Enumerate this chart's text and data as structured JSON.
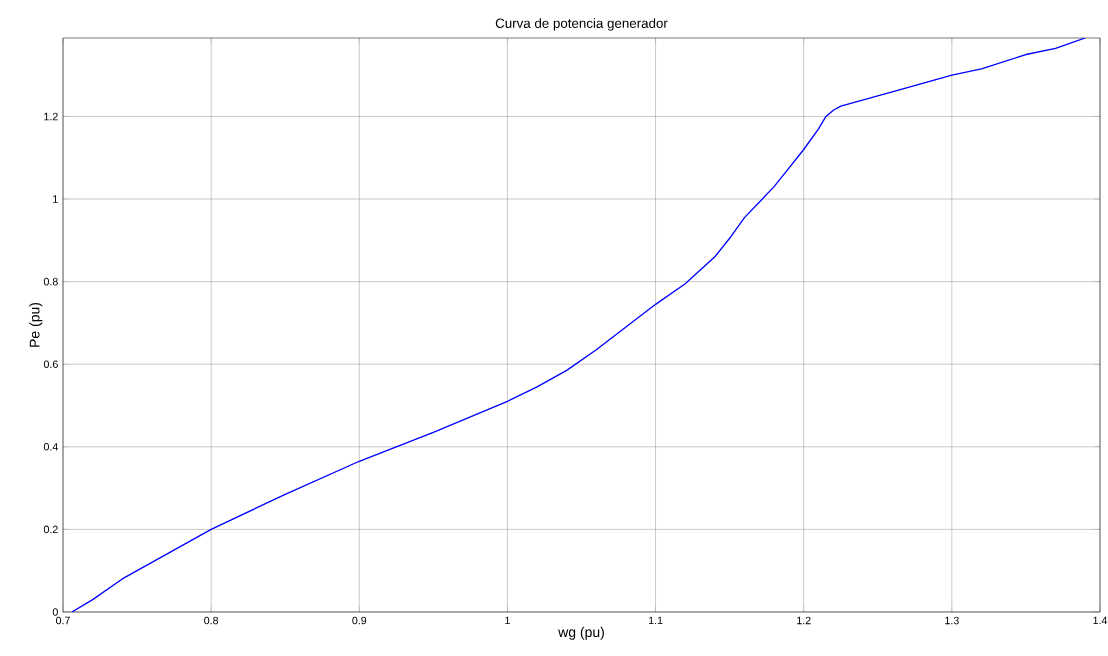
{
  "chart_data": {
    "type": "line",
    "title": "Curva de potencia generador",
    "xlabel": "wg (pu)",
    "ylabel": "Pe (pu)",
    "x": [
      0.706,
      0.72,
      0.74,
      0.76,
      0.78,
      0.8,
      0.85,
      0.9,
      0.95,
      1.0,
      1.02,
      1.04,
      1.05,
      1.06,
      1.08,
      1.1,
      1.12,
      1.14,
      1.15,
      1.16,
      1.18,
      1.19,
      1.2,
      1.21,
      1.215,
      1.22,
      1.225,
      1.24,
      1.25,
      1.27,
      1.3,
      1.32,
      1.35,
      1.37,
      1.39
    ],
    "series": [
      {
        "color": "#0000ff",
        "values": [
          0,
          0.03,
          0.08,
          0.12,
          0.16,
          0.2,
          0.285,
          0.365,
          0.435,
          0.51,
          0.545,
          0.585,
          0.61,
          0.635,
          0.69,
          0.745,
          0.795,
          0.86,
          0.905,
          0.955,
          1.03,
          1.075,
          1.12,
          1.17,
          1.2,
          1.215,
          1.225,
          1.24,
          1.25,
          1.27,
          1.3,
          1.315,
          1.35,
          1.365,
          1.39
        ]
      }
    ],
    "xlim": [
      0.7,
      1.4
    ],
    "ylim": [
      0,
      1.39
    ],
    "xticks": [
      0.7,
      0.8,
      0.9,
      1,
      1.1,
      1.2,
      1.3,
      1.4
    ],
    "yticks": [
      0,
      0.2,
      0.4,
      0.6,
      0.8,
      1,
      1.2
    ],
    "grid": true,
    "marker": "none",
    "line_style": "solid"
  }
}
